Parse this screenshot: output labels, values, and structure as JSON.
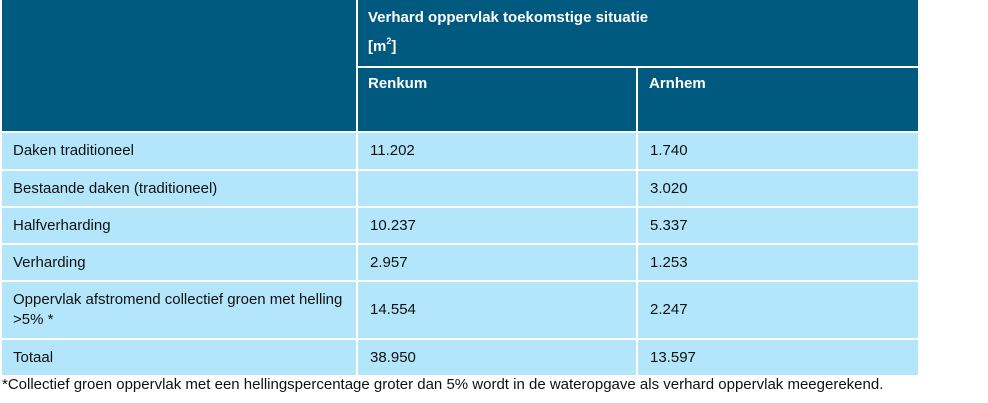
{
  "table": {
    "header": {
      "group_title": "Verhard oppervlak toekomstige situatie",
      "unit_prefix": "[m",
      "unit_sup": "2",
      "unit_suffix": "]",
      "col_renkum": "Renkum",
      "col_arnhem": "Arnhem"
    },
    "rows": [
      {
        "label": "Daken traditioneel",
        "renkum": "11.202",
        "arnhem": "1.740"
      },
      {
        "label": "Bestaande daken (traditioneel)",
        "renkum": "",
        "arnhem": "3.020"
      },
      {
        "label": "Halfverharding",
        "renkum": "10.237",
        "arnhem": "5.337"
      },
      {
        "label": "Verharding",
        "renkum": "2.957",
        "arnhem": "1.253"
      },
      {
        "label": "Oppervlak afstromend collectief groen met helling >5% *",
        "renkum": "14.554",
        "arnhem": "2.247"
      },
      {
        "label": "Totaal",
        "renkum": "38.950",
        "arnhem": "13.597"
      }
    ]
  },
  "footnote": "*Collectief groen oppervlak met een hellingspercentage groter dan 5% wordt in de wateropgave als verhard oppervlak meegerekend.",
  "colors": {
    "header_bg": "#005a80",
    "row_bg": "#b3e6fb",
    "grid_line": "#ffffff"
  }
}
